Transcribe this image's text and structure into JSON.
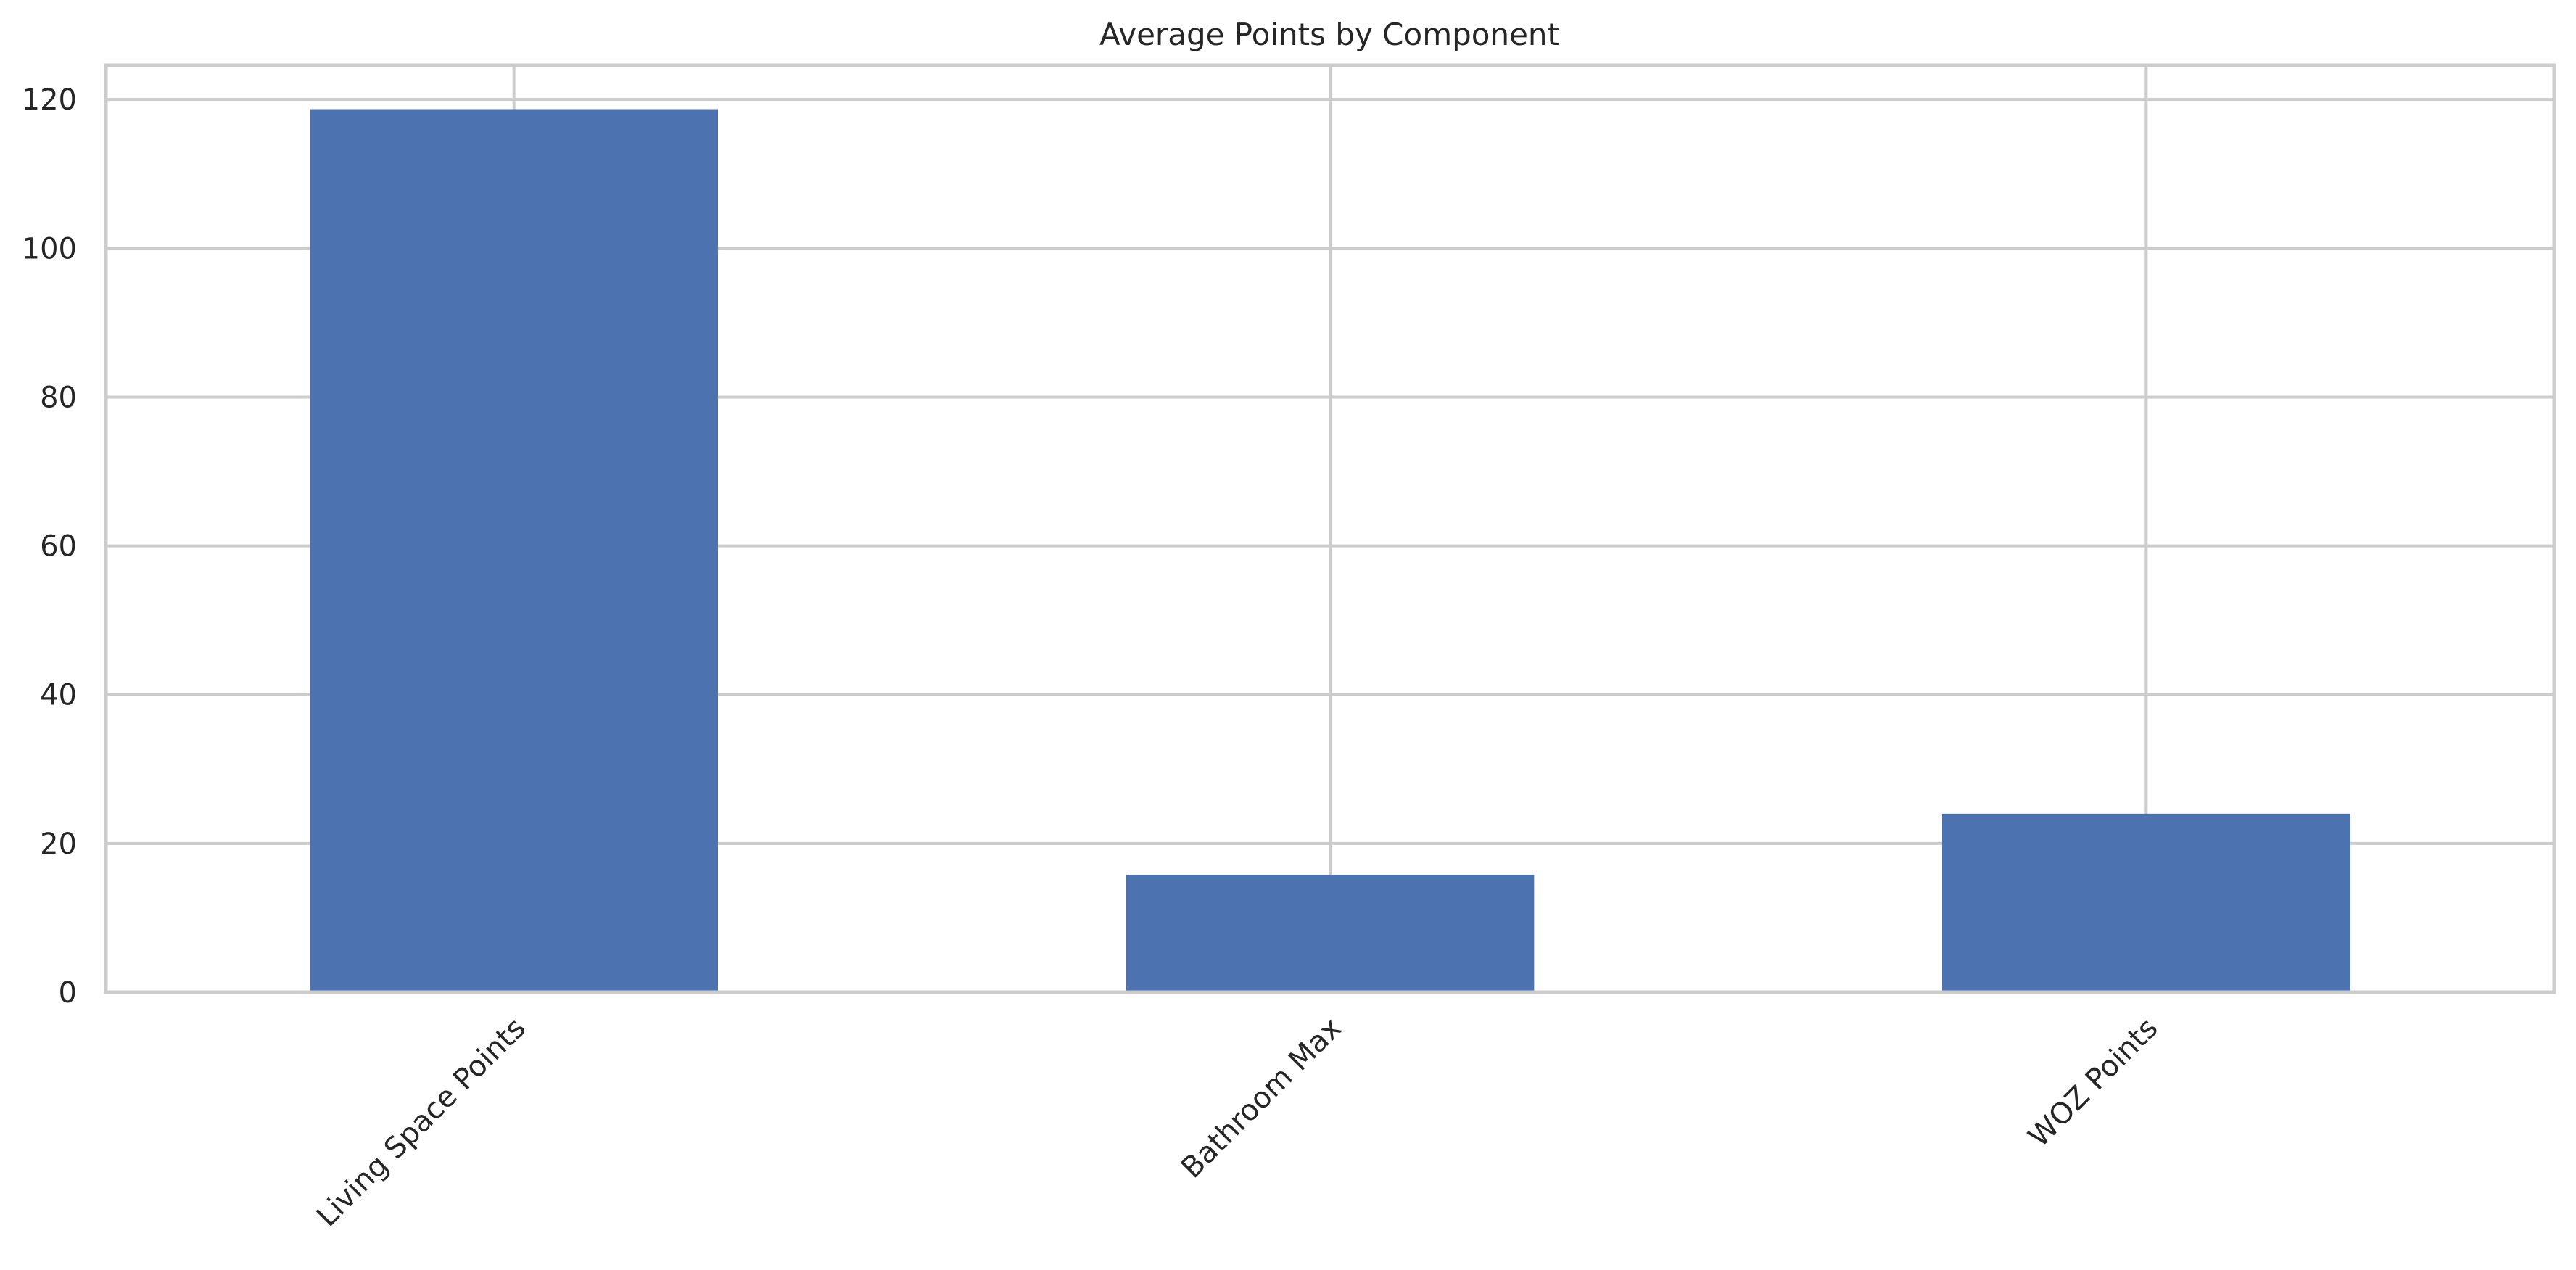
{
  "chart_data": {
    "type": "bar",
    "title": "Average Points by Component",
    "xlabel": "",
    "ylabel": "",
    "categories": [
      "Living Space Points",
      "Bathroom Max",
      "WOZ Points"
    ],
    "values": [
      118.7,
      15.8,
      24.0
    ],
    "ylim": [
      0,
      124.6
    ],
    "yticks": [
      0,
      20,
      40,
      60,
      80,
      100,
      120
    ],
    "grid": true,
    "legend": "none",
    "bar_color": "#4c72b0",
    "grid_color": "#cccccc",
    "text_color": "#262626"
  }
}
